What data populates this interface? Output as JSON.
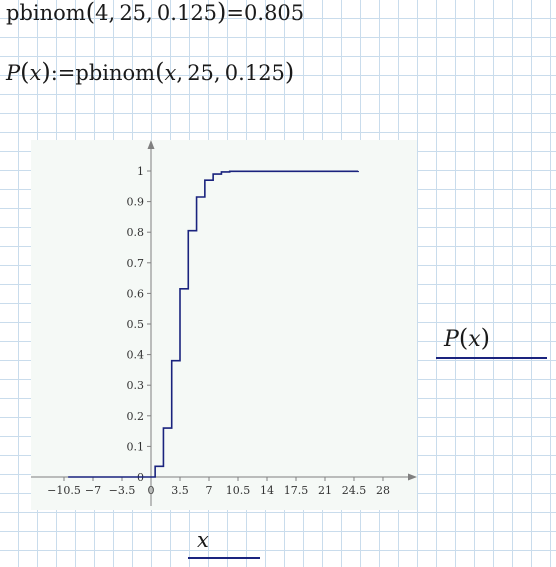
{
  "equation1": {
    "func": "pbinom",
    "open": "(",
    "args": [
      "4",
      "25",
      "0.125"
    ],
    "close": ")",
    "equals": "=",
    "result": "0.805"
  },
  "equation2": {
    "lhs_func": "P",
    "lhs_var": "x",
    "define": ":=",
    "func": "pbinom",
    "args": [
      "x",
      "25",
      "0.125"
    ]
  },
  "plot": {
    "trace_label_func": "P",
    "trace_label_var": "x",
    "x_axis_label": "x",
    "trace_color": "#1a237e"
  },
  "chart_data": {
    "type": "line",
    "step": true,
    "series": [
      {
        "x": [
          -10,
          0,
          0.5,
          1,
          1.5,
          2,
          2.5,
          3,
          3.5,
          4,
          4.5,
          5,
          5.5,
          6,
          6.5,
          7,
          7.5,
          8,
          8.5,
          9,
          9.5,
          10,
          25
        ],
        "y": [
          0,
          0,
          0.035,
          0.035,
          0.16,
          0.16,
          0.38,
          0.38,
          0.615,
          0.615,
          0.805,
          0.805,
          0.915,
          0.915,
          0.97,
          0.97,
          0.99,
          0.99,
          0.997,
          0.997,
          0.999,
          0.999,
          1
        ]
      }
    ],
    "xticks": [
      "−10.5",
      "−7",
      "−3.5",
      "0",
      "3.5",
      "7",
      "10.5",
      "14",
      "17.5",
      "21",
      "24.5",
      "28"
    ],
    "xtick_values": [
      -10.5,
      -7,
      -3.5,
      0,
      3.5,
      7,
      10.5,
      14,
      17.5,
      21,
      24.5,
      28
    ],
    "yticks": [
      "0.1",
      "0.2",
      "0.3",
      "0.4",
      "0.5",
      "0.6",
      "0.7",
      "0.8",
      "0.9",
      "1"
    ],
    "ytick_values": [
      0.1,
      0.2,
      0.3,
      0.4,
      0.5,
      0.6,
      0.7,
      0.8,
      0.9,
      1
    ],
    "y_zero_label": "0",
    "xlim": [
      -14.5,
      31.5
    ],
    "ylim": [
      -0.1,
      1.1
    ],
    "grid": false
  }
}
